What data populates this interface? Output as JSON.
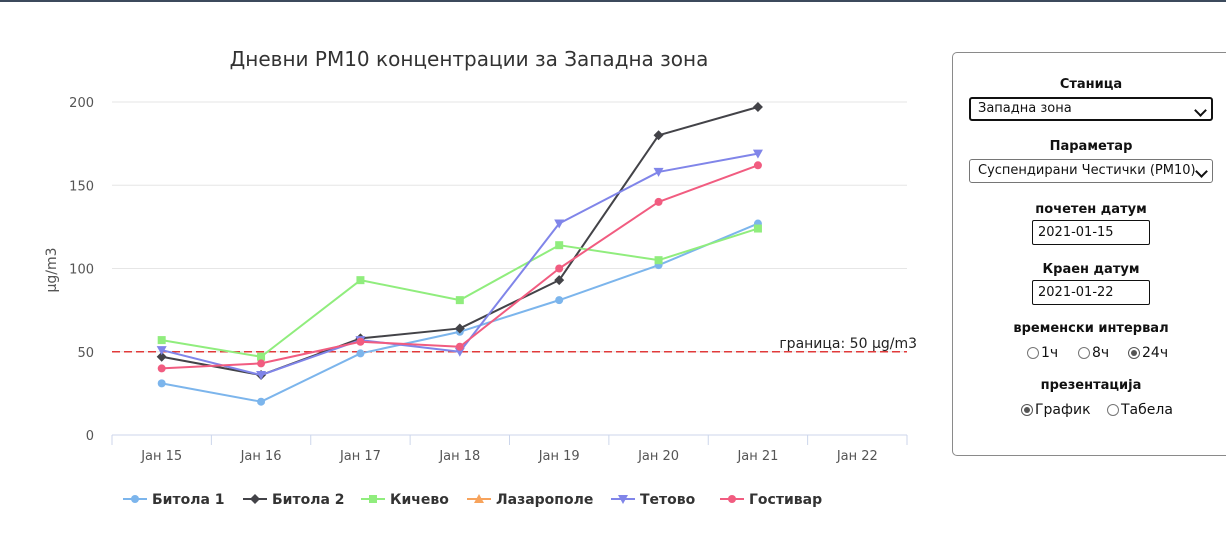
{
  "chart_data": {
    "type": "line",
    "title": "Дневни PM10 концентрации за Западна зона",
    "ylabel": "µg/m3",
    "xlabel": "",
    "categories": [
      "Јан 15",
      "Јан 16",
      "Јан 17",
      "Јан 18",
      "Јан 19",
      "Јан 20",
      "Јан 21",
      "Јан 22"
    ],
    "ylim": [
      0,
      200
    ],
    "yticks": [
      0,
      50,
      100,
      150,
      200
    ],
    "grid": true,
    "legend_position": "bottom",
    "threshold": {
      "value": 50,
      "label": "граница: 50 µg/m3",
      "color": "#e03a3a"
    },
    "series": [
      {
        "name": "Битола 1",
        "color": "#7cb5ec",
        "marker": "circle",
        "values": [
          31,
          20,
          49,
          62,
          81,
          102,
          127,
          null
        ]
      },
      {
        "name": "Битола 2",
        "color": "#434348",
        "marker": "diamond",
        "values": [
          47,
          36,
          58,
          64,
          93,
          180,
          197,
          null
        ]
      },
      {
        "name": "Кичево",
        "color": "#90ed7d",
        "marker": "square",
        "values": [
          57,
          47,
          93,
          81,
          114,
          105,
          124,
          null
        ]
      },
      {
        "name": "Лазарополе",
        "color": "#f7a35c",
        "marker": "triangle",
        "values": [
          null,
          null,
          null,
          null,
          null,
          null,
          null,
          null
        ]
      },
      {
        "name": "Тетово",
        "color": "#8085e9",
        "marker": "triangle-down",
        "values": [
          51,
          36,
          57,
          50,
          127,
          158,
          169,
          null
        ]
      },
      {
        "name": "Гостивар",
        "color": "#f15c80",
        "marker": "circle",
        "values": [
          40,
          43,
          56,
          53,
          100,
          140,
          162,
          null
        ]
      }
    ]
  },
  "panel": {
    "station_label": "Станица",
    "station_value": "Западна зона",
    "parameter_label": "Параметар",
    "parameter_value": "Суспендирани Честички (PM10)",
    "start_label": "почетен датум",
    "start_value": "2021-01-15",
    "end_label": "Краен датум",
    "end_value": "2021-01-22",
    "interval_label": "временски интервал",
    "interval_options": [
      "1ч",
      "8ч",
      "24ч"
    ],
    "interval_selected": "24ч",
    "presentation_label": "презентација",
    "presentation_options": [
      "График",
      "Табела"
    ],
    "presentation_selected": "График"
  }
}
